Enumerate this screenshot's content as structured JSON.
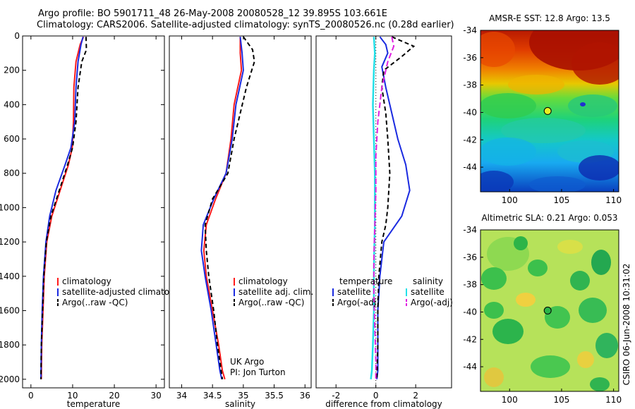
{
  "header": {
    "line1": "Argo profile: BO 5901711_48 26-May-2008 20080528_12 39.895S 103.661E",
    "line2": "Climatology: CARS2006. Satellite-adjusted climatology: synTS_20080526.nc (0.28d earlier)"
  },
  "side_stamp": "CSIRO 06-Jun-2008 10:31:02",
  "colors": {
    "red": "#ff1a1a",
    "blue": "#1a2ae0",
    "black": "#000000",
    "cyan": "#22e0e8",
    "magenta": "#e020e0"
  },
  "chart_data": [
    {
      "id": "temperature",
      "type": "line",
      "xlabel": "temperature",
      "xlim": [
        -2,
        32
      ],
      "ylim": [
        2050,
        0
      ],
      "xticks": [
        0,
        10,
        20,
        30
      ],
      "yticks": [
        0,
        200,
        400,
        600,
        800,
        1000,
        1200,
        1400,
        1600,
        1800,
        2000
      ],
      "series": [
        {
          "name": "climatology",
          "color": "red",
          "dash": "",
          "x": [
            12.6,
            11.8,
            10.8,
            10.3,
            10.2,
            9.9,
            9.0,
            7.0,
            5.0,
            3.8,
            3.2,
            2.9,
            2.6,
            2.5
          ],
          "y": [
            5,
            50,
            150,
            300,
            500,
            650,
            750,
            900,
            1050,
            1200,
            1400,
            1600,
            1800,
            2000
          ]
        },
        {
          "name": "satellite-adjusted climatology",
          "color": "blue",
          "dash": "",
          "x": [
            12.5,
            12.0,
            11.3,
            10.8,
            10.5,
            9.6,
            8.2,
            6.0,
            4.5,
            3.6,
            3.0,
            2.7,
            2.5,
            2.4
          ],
          "y": [
            5,
            50,
            150,
            300,
            500,
            650,
            750,
            900,
            1050,
            1200,
            1400,
            1600,
            1800,
            2000
          ]
        },
        {
          "name": "Argo(..raw -QC)",
          "color": "black",
          "dash": "6,4",
          "x": [
            13.2,
            13.3,
            12.2,
            11.3,
            10.8,
            10.0,
            8.8,
            6.8,
            4.8,
            3.7,
            3.1,
            2.8,
            2.5,
            2.4
          ],
          "y": [
            5,
            80,
            150,
            300,
            500,
            650,
            750,
            900,
            1050,
            1200,
            1400,
            1600,
            1800,
            2000
          ]
        }
      ],
      "legend": [
        "climatology",
        "satellite-adjusted climatolog",
        "Argo(..raw -QC)"
      ]
    },
    {
      "id": "salinity",
      "type": "line",
      "xlabel": "salinity",
      "xlim": [
        33.8,
        36.1
      ],
      "ylim": [
        2050,
        0
      ],
      "xticks": [
        34,
        34.5,
        35,
        35.5,
        36
      ],
      "yticks": [],
      "series": [
        {
          "name": "climatology",
          "color": "red",
          "dash": "",
          "x": [
            34.95,
            34.95,
            34.97,
            34.85,
            34.8,
            34.72,
            34.55,
            34.4,
            34.36,
            34.4,
            34.5,
            34.6,
            34.66,
            34.7
          ],
          "y": [
            5,
            100,
            200,
            400,
            600,
            800,
            950,
            1100,
            1250,
            1400,
            1600,
            1800,
            1950,
            2000
          ]
        },
        {
          "name": "satellite adj. clim.",
          "color": "blue",
          "dash": "",
          "x": [
            34.95,
            34.98,
            35.0,
            34.88,
            34.82,
            34.72,
            34.52,
            34.35,
            34.32,
            34.38,
            34.48,
            34.56,
            34.62,
            34.65
          ],
          "y": [
            5,
            100,
            200,
            400,
            600,
            800,
            950,
            1100,
            1250,
            1400,
            1600,
            1800,
            1950,
            2000
          ]
        },
        {
          "name": "Argo(..raw -QC)",
          "color": "black",
          "dash": "6,4",
          "x": [
            35.0,
            35.15,
            35.18,
            35.05,
            34.85,
            34.75,
            34.5,
            34.38,
            34.4,
            34.44,
            34.52,
            34.58,
            34.64,
            34.66
          ],
          "y": [
            5,
            80,
            150,
            300,
            600,
            800,
            950,
            1100,
            1250,
            1400,
            1600,
            1800,
            1950,
            2000
          ]
        }
      ],
      "legend": [
        "climatology",
        "satellite adj. clim.",
        "Argo(..raw -QC)"
      ],
      "annotation": [
        "UK Argo",
        "PI: Jon Turton"
      ]
    },
    {
      "id": "difference",
      "type": "line",
      "xlabel": "difference from climatology",
      "xlim": [
        -3,
        3.8
      ],
      "ylim": [
        2050,
        0
      ],
      "xticks": [
        -2,
        0,
        2
      ],
      "yticks": [],
      "series": [
        {
          "name": "temperature satellite",
          "color": "blue",
          "dash": "",
          "x": [
            0.2,
            0.5,
            0.6,
            0.3,
            0.5,
            0.8,
            1.1,
            1.5,
            1.7,
            1.3,
            0.4,
            0.2,
            0.1,
            0.1,
            0.1,
            0.05
          ],
          "y": [
            5,
            50,
            100,
            180,
            300,
            450,
            600,
            750,
            900,
            1050,
            1200,
            1400,
            1600,
            1800,
            1950,
            2000
          ]
        },
        {
          "name": "temperature Argo(-adj)",
          "color": "black",
          "dash": "6,4",
          "x": [
            0.8,
            1.9,
            1.3,
            0.4,
            0.3,
            0.5,
            0.6,
            0.7,
            0.6,
            0.5,
            0.3,
            0.15,
            0.1,
            0.1,
            0.05
          ],
          "y": [
            5,
            60,
            120,
            200,
            300,
            450,
            600,
            800,
            1000,
            1100,
            1200,
            1400,
            1600,
            1800,
            2000
          ]
        },
        {
          "name": "salinity satellite",
          "color": "cyan",
          "dash": "",
          "x": [
            -0.1,
            -0.05,
            -0.1,
            -0.15,
            -0.1,
            -0.05,
            -0.05,
            -0.05,
            -0.08,
            -0.1,
            -0.1,
            -0.15,
            -0.2,
            -0.25
          ],
          "y": [
            5,
            100,
            200,
            400,
            600,
            800,
            950,
            1100,
            1250,
            1400,
            1600,
            1800,
            1950,
            2000
          ]
        },
        {
          "name": "salinity Argo(-adj)",
          "color": "magenta",
          "dash": "8,4",
          "x": [
            0.8,
            0.9,
            0.6,
            0.3,
            0.1,
            0.0,
            0.0,
            -0.05,
            -0.1,
            -0.1,
            -0.05,
            0.0,
            0.0
          ],
          "y": [
            5,
            60,
            150,
            300,
            500,
            700,
            900,
            1100,
            1300,
            1500,
            1700,
            1900,
            2000
          ]
        }
      ],
      "legend": {
        "col1_title": "temperature",
        "col2_title": "salinity",
        "col1": [
          "satellite",
          "Argo(-adj)"
        ],
        "col2": [
          "satellite",
          "Argo(-adj)"
        ]
      }
    }
  ],
  "maps": [
    {
      "id": "sst",
      "title": "AMSR-E SST: 12.8 Argo: 13.5",
      "xticks": [
        100,
        105,
        110
      ],
      "yticks": [
        -34,
        -36,
        -38,
        -40,
        -42,
        -44
      ],
      "xlim": [
        97.2,
        110.5
      ],
      "ylim": [
        -45.8,
        -34
      ],
      "marker": {
        "lon": 103.661,
        "lat": -39.895
      }
    },
    {
      "id": "sla",
      "title": "Altimetric SLA: 0.21 Argo: 0.053",
      "xticks": [
        100,
        105,
        110
      ],
      "yticks": [
        -34,
        -36,
        -38,
        -40,
        -42,
        -44
      ],
      "xlim": [
        97.2,
        110.5
      ],
      "ylim": [
        -45.8,
        -34
      ],
      "marker": {
        "lon": 103.661,
        "lat": -39.895
      }
    }
  ]
}
